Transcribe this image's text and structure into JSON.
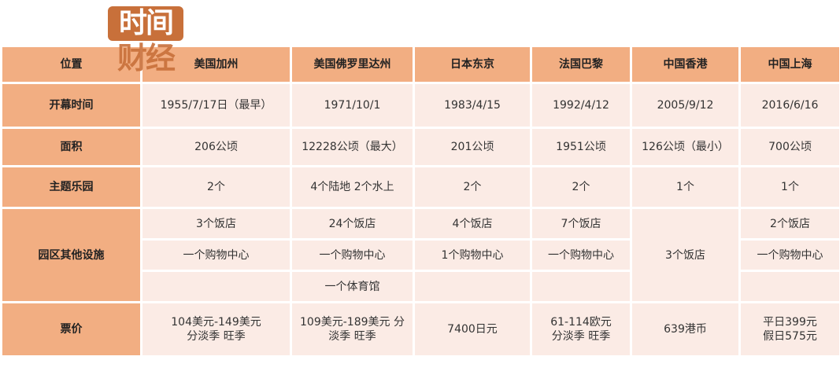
{
  "logo": {
    "line1": "时间",
    "line2": "财经",
    "color": "#c8703a"
  },
  "colors": {
    "header": "#f2ae82",
    "body": "#fbebe5"
  },
  "headers": [
    "位置",
    "美国加州",
    "美国佛罗里达州",
    "日本东京",
    "法国巴黎",
    "中国香港",
    "中国上海"
  ],
  "rows": {
    "opening": {
      "label": "开幕时间",
      "values": [
        "1955/7/17日（最早）",
        "1971/10/1",
        "1983/4/15",
        "1992/4/12",
        "2005/9/12",
        "2016/6/16"
      ]
    },
    "area": {
      "label": "面积",
      "values": [
        "206公顷",
        "12228公顷（最大）",
        "201公顷",
        "1951公顷",
        "126公顷（最小）",
        "700公顷"
      ]
    },
    "parks": {
      "label": "主题乐园",
      "values": [
        "2个",
        "4个陆地 2个水上",
        "2个",
        "2个",
        "1个",
        "1个"
      ]
    },
    "facilities": {
      "label": "园区其他设施",
      "ca": [
        "3个饭店",
        "一个购物中心",
        ""
      ],
      "fl": [
        "24个饭店",
        "一个购物中心",
        "一个体育馆"
      ],
      "tk": [
        "4个饭店",
        "1个购物中心",
        ""
      ],
      "pa": [
        "7个饭店",
        "一个购物中心",
        ""
      ],
      "hk": "3个饭店",
      "sh": [
        "2个饭店",
        "一个购物中心",
        ""
      ]
    },
    "price": {
      "label": "票价",
      "values": [
        "104美元-149美元\n分淡季 旺季",
        "109美元-189美元 分\n淡季 旺季",
        "7400日元",
        "61-114欧元\n分淡季 旺季",
        "639港币",
        "平日399元\n假日575元"
      ]
    }
  }
}
